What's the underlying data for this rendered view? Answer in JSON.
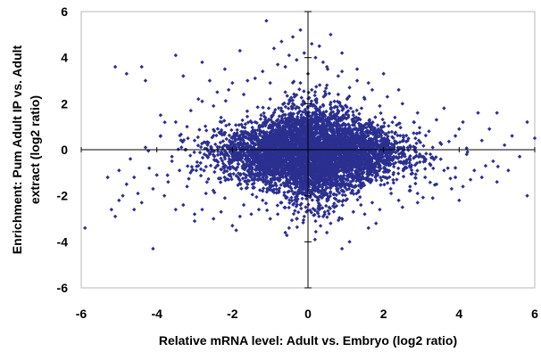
{
  "chart_data": {
    "type": "scatter",
    "title": "",
    "xlabel": "Relative mRNA level: Adult vs. Embryo (log2 ratio)",
    "ylabel_lines": [
      "Enrichment: Pum Adult IP vs. Adult",
      "extract (log2 ratio)"
    ],
    "xlim": [
      -6,
      6
    ],
    "ylim": [
      -6,
      6
    ],
    "xticks": [
      -6,
      -4,
      -2,
      0,
      2,
      4,
      6
    ],
    "yticks": [
      -6,
      -4,
      -2,
      0,
      2,
      4,
      6
    ],
    "xtick_labels": [
      "-6",
      "-4",
      "-2",
      "0",
      "2",
      "4",
      "6"
    ],
    "ytick_labels": [
      "-6",
      "-4",
      "-2",
      "0",
      "2",
      "4",
      "6"
    ],
    "grid": false,
    "legend": "none",
    "marker": "diamond",
    "point_color": "#2b2f8f",
    "series": [
      {
        "values": [
          [
            -5.9,
            -3.4
          ],
          [
            -5.1,
            3.6
          ],
          [
            -4.8,
            3.3
          ],
          [
            -4.4,
            3.6
          ],
          [
            -4.3,
            3.0
          ],
          [
            -3.5,
            4.1
          ],
          [
            -3.3,
            3.2
          ],
          [
            -2.8,
            3.8
          ],
          [
            -2.6,
            3.0
          ],
          [
            -2.2,
            3.5
          ],
          [
            -1.8,
            4.3
          ],
          [
            -1.1,
            5.6
          ],
          [
            -0.9,
            4.4
          ],
          [
            -0.7,
            4.7
          ],
          [
            -0.4,
            4.9
          ],
          [
            -0.2,
            5.2
          ],
          [
            0.1,
            4.6
          ],
          [
            0.3,
            4.5
          ],
          [
            0.6,
            5.0
          ],
          [
            0.9,
            4.2
          ],
          [
            1.3,
            3.5
          ],
          [
            1.6,
            2.9
          ],
          [
            2.0,
            3.3
          ],
          [
            2.4,
            2.6
          ],
          [
            3.6,
            1.8
          ],
          [
            4.1,
            1.2
          ],
          [
            4.5,
            1.6
          ],
          [
            4.8,
            0.9
          ],
          [
            5.0,
            1.6
          ],
          [
            5.4,
            0.6
          ],
          [
            5.8,
            1.2
          ],
          [
            6.0,
            0.5
          ],
          [
            5.6,
            -0.3
          ],
          [
            5.3,
            -0.9
          ],
          [
            5.8,
            -2.0
          ],
          [
            5.0,
            -1.4
          ],
          [
            4.7,
            -0.7
          ],
          [
            4.3,
            -1.3
          ],
          [
            4.0,
            -2.2
          ],
          [
            3.8,
            -1.7
          ],
          [
            3.3,
            -2.1
          ],
          [
            2.5,
            -2.5
          ],
          [
            1.8,
            -3.2
          ],
          [
            1.5,
            -2.8
          ],
          [
            1.1,
            -4.0
          ],
          [
            0.9,
            -4.3
          ],
          [
            0.5,
            -3.6
          ],
          [
            0.2,
            -3.1
          ],
          [
            -0.1,
            -2.9
          ],
          [
            -0.5,
            -3.4
          ],
          [
            -1.0,
            -3.0
          ],
          [
            -1.5,
            -2.8
          ],
          [
            -2.0,
            -3.3
          ],
          [
            -2.5,
            -3.0
          ],
          [
            -3.0,
            -3.1
          ],
          [
            -3.5,
            -2.6
          ],
          [
            -4.1,
            -4.3
          ],
          [
            -4.6,
            -2.6
          ],
          [
            -5.1,
            -2.9
          ],
          [
            -5.3,
            -1.2
          ],
          [
            -5.0,
            -2.2
          ],
          [
            -4.8,
            -1.5
          ],
          [
            -4.5,
            -1.9
          ],
          [
            -4.2,
            -0.8
          ],
          [
            -3.9,
            1.5
          ],
          [
            -3.6,
            -0.3
          ],
          [
            -3.2,
            1.0
          ],
          [
            -2.9,
            2.2
          ],
          [
            -2.5,
            1.9
          ],
          [
            -2.1,
            2.6
          ],
          [
            -1.7,
            2.4
          ],
          [
            -1.4,
            3.1
          ],
          [
            -1.0,
            2.9
          ],
          [
            -0.6,
            3.6
          ],
          [
            -0.3,
            3.9
          ],
          [
            0.0,
            3.3
          ],
          [
            0.4,
            3.8
          ],
          [
            0.8,
            3.2
          ],
          [
            1.1,
            2.7
          ],
          [
            1.5,
            2.2
          ],
          [
            1.9,
            1.9
          ],
          [
            2.3,
            1.4
          ],
          [
            2.8,
            1.2
          ],
          [
            3.2,
            0.8
          ],
          [
            3.5,
            0.3
          ],
          [
            3.9,
            0.6
          ],
          [
            4.2,
            -0.2
          ],
          [
            3.7,
            -0.8
          ],
          [
            3.1,
            -1.2
          ],
          [
            2.7,
            -1.6
          ],
          [
            2.2,
            -1.9
          ],
          [
            1.7,
            -2.3
          ],
          [
            1.2,
            -2.7
          ],
          [
            0.7,
            -2.5
          ],
          [
            0.3,
            -2.6
          ],
          [
            -0.2,
            -2.4
          ],
          [
            -0.7,
            -2.3
          ],
          [
            -1.2,
            -2.2
          ],
          [
            -1.7,
            -2.4
          ],
          [
            -2.2,
            -2.1
          ],
          [
            -2.7,
            -1.9
          ],
          [
            -3.2,
            -1.6
          ],
          [
            -3.7,
            -1.4
          ],
          [
            -4.0,
            -1.1
          ],
          [
            -3.4,
            -0.9
          ],
          [
            -2.9,
            -0.7
          ],
          [
            -2.4,
            -0.5
          ],
          [
            -1.9,
            -0.3
          ],
          [
            -1.4,
            -0.1
          ],
          [
            -0.9,
            0.2
          ],
          [
            -0.4,
            0.4
          ],
          [
            0.1,
            0.3
          ],
          [
            0.6,
            0.2
          ],
          [
            1.1,
            0.0
          ],
          [
            1.6,
            -0.2
          ],
          [
            2.1,
            -0.4
          ],
          [
            2.6,
            -0.6
          ],
          [
            3.1,
            -0.5
          ],
          [
            -5.2,
            -2.6
          ],
          [
            -4.9,
            -2.0
          ],
          [
            -4.4,
            -2.3
          ],
          [
            -3.8,
            -2.0
          ],
          [
            -3.3,
            -2.4
          ],
          [
            -2.8,
            -2.6
          ],
          [
            -2.3,
            -2.7
          ],
          [
            -1.8,
            -2.9
          ],
          [
            -1.3,
            -2.6
          ],
          [
            -0.8,
            -2.8
          ],
          [
            -0.3,
            -3.0
          ],
          [
            0.4,
            -2.9
          ],
          [
            0.9,
            -3.0
          ],
          [
            1.4,
            -2.4
          ],
          [
            1.9,
            -2.6
          ],
          [
            2.4,
            -2.2
          ],
          [
            2.9,
            -1.9
          ],
          [
            3.4,
            -1.5
          ],
          [
            3.9,
            -1.2
          ],
          [
            4.4,
            -0.9
          ],
          [
            4.9,
            -0.5
          ],
          [
            5.2,
            0.2
          ],
          [
            4.6,
            0.4
          ],
          [
            4.0,
            0.9
          ],
          [
            3.4,
            1.3
          ],
          [
            2.9,
            1.6
          ],
          [
            2.5,
            2.0
          ],
          [
            2.1,
            2.3
          ],
          [
            1.7,
            2.6
          ],
          [
            1.3,
            3.0
          ],
          [
            0.9,
            3.4
          ],
          [
            0.5,
            3.6
          ],
          [
            0.2,
            4.0
          ],
          [
            -0.1,
            4.2
          ],
          [
            -0.5,
            4.1
          ],
          [
            -0.8,
            3.7
          ],
          [
            -1.2,
            3.4
          ],
          [
            -1.6,
            3.0
          ],
          [
            -2.0,
            2.9
          ],
          [
            -2.4,
            2.5
          ],
          [
            -2.8,
            2.1
          ],
          [
            -3.1,
            1.7
          ],
          [
            -3.5,
            1.2
          ],
          [
            -3.9,
            0.6
          ],
          [
            -4.3,
            0.1
          ],
          [
            -4.7,
            -0.4
          ],
          [
            -5.0,
            -0.9
          ],
          [
            -2.6,
            -0.2
          ],
          [
            -2.0,
            0.1
          ],
          [
            -1.5,
            0.4
          ],
          [
            -1.0,
            0.7
          ],
          [
            -0.5,
            0.9
          ],
          [
            0.0,
            1.1
          ],
          [
            0.5,
            0.8
          ],
          [
            1.0,
            0.6
          ],
          [
            1.5,
            0.3
          ],
          [
            2.0,
            0.1
          ],
          [
            2.5,
            -0.1
          ],
          [
            3.0,
            -0.3
          ],
          [
            -0.6,
            -1.0
          ],
          [
            -0.1,
            -1.2
          ],
          [
            0.4,
            -1.1
          ],
          [
            0.9,
            -1.3
          ],
          [
            1.4,
            -1.5
          ],
          [
            -1.1,
            -1.4
          ],
          [
            -1.6,
            -1.5
          ],
          [
            -2.1,
            -1.3
          ],
          [
            0.2,
            1.8
          ],
          [
            -0.4,
            2.0
          ],
          [
            0.7,
            2.1
          ],
          [
            -0.9,
            1.6
          ],
          [
            1.2,
            1.5
          ],
          [
            -1.4,
            1.2
          ],
          [
            1.7,
            1.0
          ],
          [
            0.0,
            -0.5
          ],
          [
            -0.3,
            -0.2
          ],
          [
            0.3,
            0.0
          ],
          [
            0.6,
            -0.6
          ],
          [
            -0.8,
            -0.5
          ],
          [
            1.0,
            -0.8
          ],
          [
            -1.3,
            -0.8
          ],
          [
            1.3,
            0.4
          ],
          [
            -1.7,
            0.6
          ],
          [
            0.1,
            2.6
          ],
          [
            -0.2,
            2.9
          ],
          [
            0.5,
            2.8
          ],
          [
            -0.6,
            2.5
          ],
          [
            0.8,
            2.4
          ],
          [
            -1.0,
            2.2
          ],
          [
            1.0,
            1.9
          ],
          [
            -2.3,
            1.4
          ],
          [
            2.3,
            0.7
          ],
          [
            -3.0,
            0.4
          ],
          [
            3.3,
            0.1
          ],
          [
            -3.6,
            -0.5
          ],
          [
            3.6,
            -0.9
          ],
          [
            -4.1,
            -1.7
          ],
          [
            4.1,
            -1.6
          ],
          [
            -4.6,
            -1.2
          ],
          [
            4.6,
            -1.2
          ],
          [
            -3.0,
            -2.8
          ],
          [
            2.9,
            -2.3
          ],
          [
            -1.9,
            -3.5
          ],
          [
            1.6,
            -3.4
          ],
          [
            -0.6,
            -3.6
          ],
          [
            0.6,
            -3.2
          ]
        ]
      }
    ]
  }
}
